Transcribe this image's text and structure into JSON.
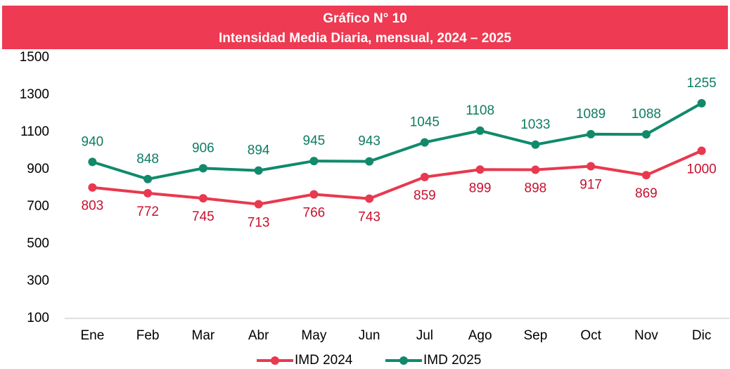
{
  "chart_data": {
    "type": "line",
    "title": "Gráfico N° 10",
    "subtitle": "Intensidad Media Diaria, mensual, 2024 – 2025",
    "categories": [
      "Ene",
      "Feb",
      "Mar",
      "Abr",
      "May",
      "Jun",
      "Jul",
      "Ago",
      "Sep",
      "Oct",
      "Nov",
      "Dic"
    ],
    "series": [
      {
        "name": "IMD 2024",
        "color": "#e8394f",
        "label_color": "#c8102e",
        "values": [
          803,
          772,
          745,
          713,
          766,
          743,
          859,
          899,
          898,
          917,
          869,
          1000
        ]
      },
      {
        "name": "IMD 2025",
        "color": "#108a6b",
        "label_color": "#0e7c61",
        "values": [
          940,
          848,
          906,
          894,
          945,
          943,
          1045,
          1108,
          1033,
          1089,
          1088,
          1255
        ]
      }
    ],
    "ylim": [
      100,
      1500
    ],
    "yticks": [
      100,
      300,
      500,
      700,
      900,
      1100,
      1300,
      1500
    ],
    "grid": false,
    "legend": "bottom"
  }
}
